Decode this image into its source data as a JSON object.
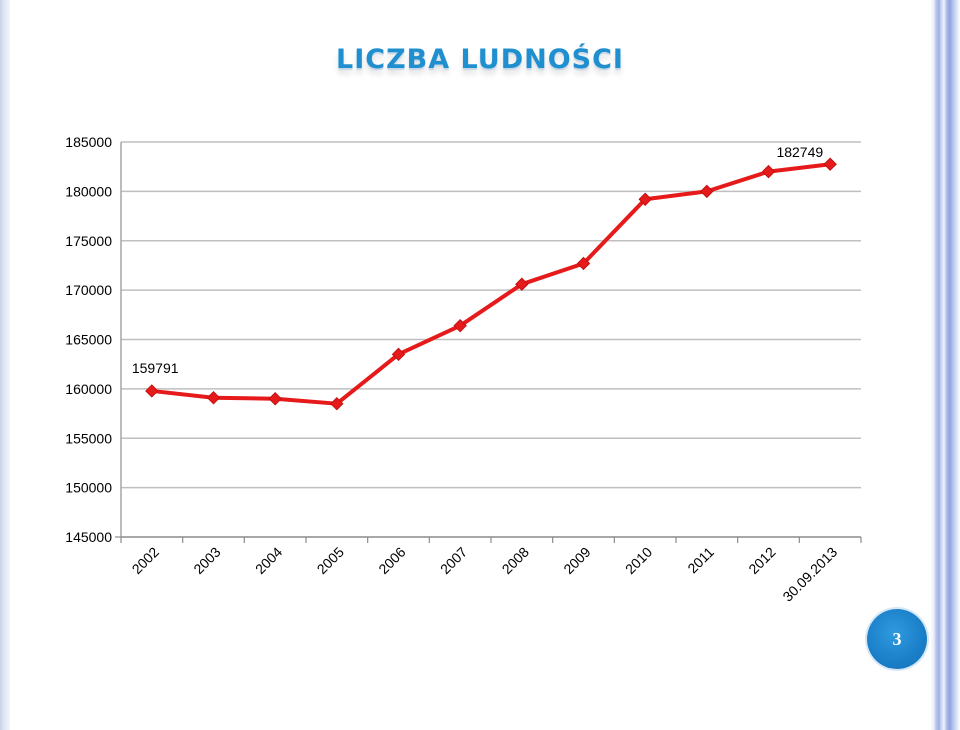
{
  "title": "LICZBA  LUDNOŚCI",
  "page_number": "3",
  "colors": {
    "line": "#e61a1a",
    "title": "#1f8fcf",
    "grid": "#bfbfbf",
    "badge": "#1a7fc8"
  },
  "chart_data": {
    "type": "line",
    "categories": [
      "2002",
      "2003",
      "2004",
      "2005",
      "2006",
      "2007",
      "2008",
      "2009",
      "2010",
      "2011",
      "2012",
      "30.09.2013"
    ],
    "values": [
      159791,
      159100,
      159000,
      158500,
      163500,
      166400,
      170600,
      172700,
      179200,
      180000,
      182000,
      182749
    ],
    "ylim": [
      145000,
      185000
    ],
    "yticks": [
      "185000",
      "180000",
      "175000",
      "170000",
      "165000",
      "160000",
      "155000",
      "150000",
      "145000"
    ],
    "data_labels": [
      {
        "index": 0,
        "text": "159791"
      },
      {
        "index": 11,
        "text": "182749"
      }
    ],
    "marker": "diamond",
    "grid": true,
    "legend": "none"
  }
}
